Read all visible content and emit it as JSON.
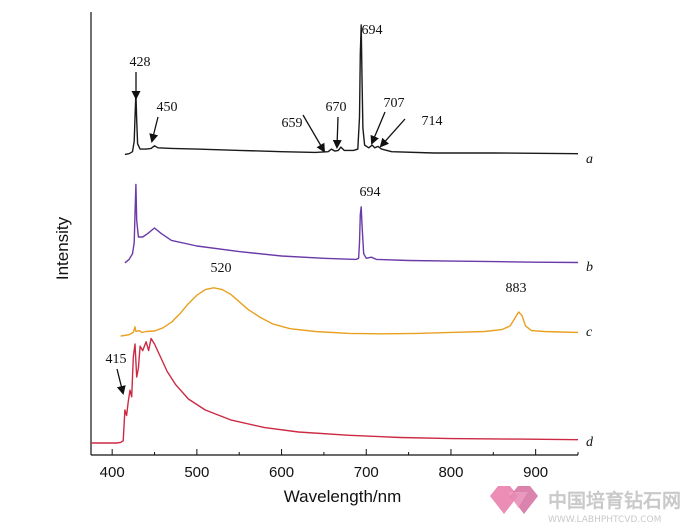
{
  "chart_data": {
    "type": "line",
    "xlabel": "Wavelength/nm",
    "ylabel": "Intensity",
    "xlim": [
      375,
      950
    ],
    "xticks": [
      400,
      500,
      600,
      700,
      800,
      900
    ],
    "grid": false,
    "series": [
      {
        "name": "a",
        "color": "#1a1a1a",
        "offset": 1,
        "points": [
          [
            415,
            0.02
          ],
          [
            420,
            0.025
          ],
          [
            424,
            0.04
          ],
          [
            426,
            0.12
          ],
          [
            427,
            0.3
          ],
          [
            428,
            0.48
          ],
          [
            429,
            0.28
          ],
          [
            430,
            0.1
          ],
          [
            433,
            0.06
          ],
          [
            440,
            0.06
          ],
          [
            446,
            0.065
          ],
          [
            450,
            0.085
          ],
          [
            454,
            0.07
          ],
          [
            470,
            0.065
          ],
          [
            500,
            0.06
          ],
          [
            550,
            0.05
          ],
          [
            600,
            0.04
          ],
          [
            640,
            0.035
          ],
          [
            655,
            0.04
          ],
          [
            659,
            0.06
          ],
          [
            663,
            0.045
          ],
          [
            667,
            0.05
          ],
          [
            670,
            0.075
          ],
          [
            674,
            0.05
          ],
          [
            685,
            0.05
          ],
          [
            690,
            0.06
          ],
          [
            692,
            0.3
          ],
          [
            693,
            0.78
          ],
          [
            694,
            1.0
          ],
          [
            695,
            0.6
          ],
          [
            696,
            0.22
          ],
          [
            698,
            0.09
          ],
          [
            703,
            0.07
          ],
          [
            707,
            0.09
          ],
          [
            710,
            0.07
          ],
          [
            714,
            0.08
          ],
          [
            718,
            0.06
          ],
          [
            730,
            0.04
          ],
          [
            780,
            0.03
          ],
          [
            850,
            0.03
          ],
          [
            900,
            0.028
          ],
          [
            950,
            0.025
          ]
        ]
      },
      {
        "name": "b",
        "color": "#6a3aa8",
        "offset": 2,
        "points": [
          [
            415,
            0.02
          ],
          [
            420,
            0.05
          ],
          [
            424,
            0.1
          ],
          [
            426,
            0.2
          ],
          [
            427,
            0.45
          ],
          [
            428,
            0.72
          ],
          [
            429,
            0.4
          ],
          [
            431,
            0.25
          ],
          [
            436,
            0.25
          ],
          [
            442,
            0.28
          ],
          [
            450,
            0.33
          ],
          [
            458,
            0.28
          ],
          [
            470,
            0.22
          ],
          [
            500,
            0.17
          ],
          [
            550,
            0.12
          ],
          [
            600,
            0.08
          ],
          [
            650,
            0.06
          ],
          [
            688,
            0.05
          ],
          [
            691,
            0.06
          ],
          [
            692,
            0.2
          ],
          [
            693,
            0.45
          ],
          [
            694,
            0.52
          ],
          [
            695,
            0.36
          ],
          [
            697,
            0.1
          ],
          [
            700,
            0.06
          ],
          [
            706,
            0.07
          ],
          [
            712,
            0.05
          ],
          [
            750,
            0.04
          ],
          [
            800,
            0.035
          ],
          [
            850,
            0.03
          ],
          [
            900,
            0.025
          ],
          [
            950,
            0.022
          ]
        ]
      },
      {
        "name": "c",
        "color": "#e8a020",
        "offset": 3,
        "points": [
          [
            410,
            0.02
          ],
          [
            420,
            0.035
          ],
          [
            425,
            0.06
          ],
          [
            427,
            0.12
          ],
          [
            428,
            0.07
          ],
          [
            432,
            0.08
          ],
          [
            435,
            0.06
          ],
          [
            440,
            0.07
          ],
          [
            450,
            0.075
          ],
          [
            460,
            0.11
          ],
          [
            470,
            0.17
          ],
          [
            480,
            0.26
          ],
          [
            490,
            0.37
          ],
          [
            500,
            0.46
          ],
          [
            510,
            0.52
          ],
          [
            520,
            0.54
          ],
          [
            530,
            0.52
          ],
          [
            540,
            0.47
          ],
          [
            550,
            0.39
          ],
          [
            560,
            0.31
          ],
          [
            575,
            0.22
          ],
          [
            590,
            0.15
          ],
          [
            610,
            0.1
          ],
          [
            640,
            0.07
          ],
          [
            680,
            0.05
          ],
          [
            720,
            0.045
          ],
          [
            760,
            0.05
          ],
          [
            800,
            0.06
          ],
          [
            840,
            0.07
          ],
          [
            860,
            0.09
          ],
          [
            870,
            0.13
          ],
          [
            876,
            0.22
          ],
          [
            880,
            0.28
          ],
          [
            884,
            0.24
          ],
          [
            888,
            0.13
          ],
          [
            895,
            0.08
          ],
          [
            910,
            0.07
          ],
          [
            930,
            0.065
          ],
          [
            950,
            0.06
          ]
        ]
      },
      {
        "name": "d",
        "color": "#cc2a44",
        "offset": 4,
        "points": [
          [
            375,
            0.0
          ],
          [
            405,
            0.0
          ],
          [
            410,
            0.005
          ],
          [
            413,
            0.02
          ],
          [
            415,
            0.3
          ],
          [
            417,
            0.25
          ],
          [
            419,
            0.38
          ],
          [
            421,
            0.48
          ],
          [
            423,
            0.42
          ],
          [
            425,
            0.78
          ],
          [
            427,
            0.9
          ],
          [
            429,
            0.6
          ],
          [
            431,
            0.68
          ],
          [
            433,
            0.88
          ],
          [
            436,
            0.84
          ],
          [
            440,
            0.92
          ],
          [
            443,
            0.84
          ],
          [
            446,
            0.95
          ],
          [
            450,
            0.9
          ],
          [
            456,
            0.8
          ],
          [
            465,
            0.65
          ],
          [
            475,
            0.53
          ],
          [
            490,
            0.4
          ],
          [
            510,
            0.3
          ],
          [
            540,
            0.21
          ],
          [
            580,
            0.14
          ],
          [
            620,
            0.1
          ],
          [
            680,
            0.07
          ],
          [
            740,
            0.05
          ],
          [
            800,
            0.04
          ],
          [
            880,
            0.035
          ],
          [
            950,
            0.03
          ]
        ]
      }
    ],
    "annotations": [
      {
        "text": "428",
        "series": "a",
        "x": 428,
        "arrow": true
      },
      {
        "text": "450",
        "series": "a",
        "x": 450,
        "arrow": true
      },
      {
        "text": "659",
        "series": "a",
        "x": 659,
        "arrow": true
      },
      {
        "text": "670",
        "series": "a",
        "x": 670,
        "arrow": true
      },
      {
        "text": "694",
        "series": "a",
        "x": 694,
        "arrow": false
      },
      {
        "text": "707",
        "series": "a",
        "x": 707,
        "arrow": true
      },
      {
        "text": "714",
        "series": "a",
        "x": 714,
        "arrow": true
      },
      {
        "text": "694",
        "series": "b",
        "x": 694,
        "arrow": false
      },
      {
        "text": "520",
        "series": "c",
        "x": 520,
        "arrow": false
      },
      {
        "text": "883",
        "series": "c",
        "x": 883,
        "arrow": false
      },
      {
        "text": "415",
        "series": "d",
        "x": 415,
        "arrow": true
      }
    ]
  },
  "watermark": {
    "title": "中国培育钻石网",
    "url": "WWW.LABHPHTCVD.COM",
    "logo_colors": [
      "#e879a8",
      "#c94f8a",
      "#f4a9c8"
    ]
  }
}
